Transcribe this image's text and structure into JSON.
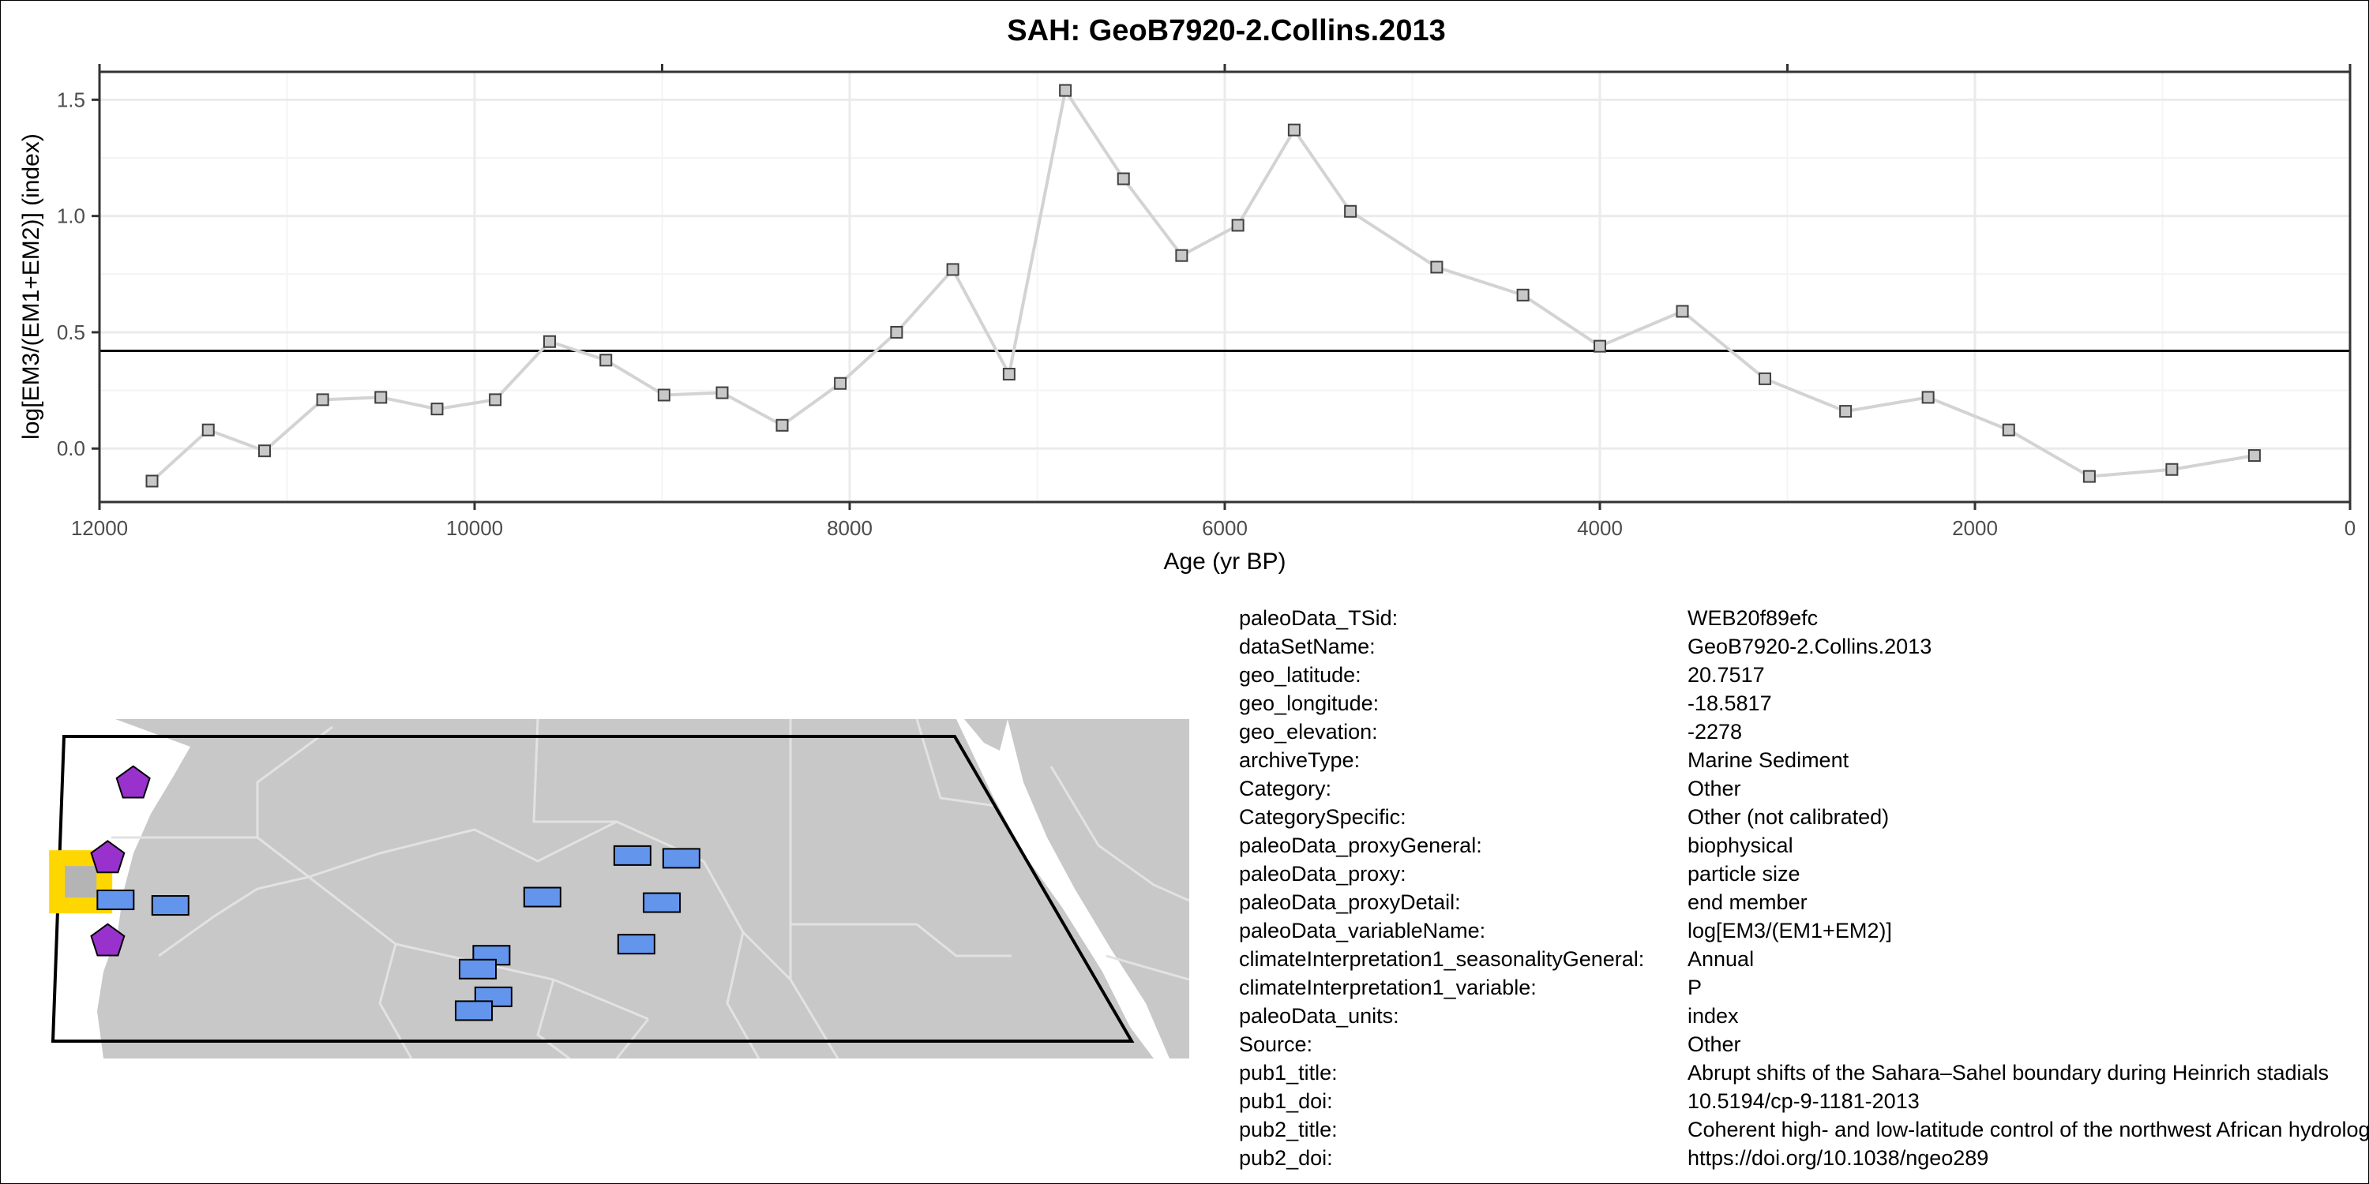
{
  "chart_data": {
    "type": "line",
    "title": "SAH: GeoB7920-2.Collins.2013",
    "xlabel": "Age (yr BP)",
    "ylabel": "log[EM3/(EM1+EM2)] (index)",
    "xlim": [
      12000,
      0
    ],
    "ylim": [
      -0.23,
      1.62
    ],
    "x_reversed": true,
    "x_ticks": [
      12000,
      10000,
      8000,
      6000,
      4000,
      2000,
      0
    ],
    "y_ticks": [
      0.0,
      0.5,
      1.0,
      1.5
    ],
    "x_tick_labels": [
      "12000",
      "10000",
      "8000",
      "6000",
      "4000",
      "2000",
      "0"
    ],
    "y_tick_labels": [
      "0.0",
      "0.5",
      "1.0",
      "1.5"
    ],
    "hline": 0.42,
    "grid": true,
    "series": [
      {
        "marker": "square",
        "x": [
          11720,
          11420,
          11120,
          10810,
          10500,
          10200,
          9890,
          9600,
          9300,
          8990,
          8680,
          8360,
          8050,
          7750,
          7450,
          7150,
          6850,
          6540,
          6230,
          5930,
          5630,
          5330,
          4870,
          4410,
          4000,
          3560,
          3120,
          2690,
          2250,
          1820,
          1390,
          950,
          510
        ],
        "y": [
          -0.14,
          0.08,
          -0.01,
          0.21,
          0.22,
          0.17,
          0.21,
          0.46,
          0.38,
          0.23,
          0.24,
          0.1,
          0.28,
          0.5,
          0.77,
          0.32,
          1.54,
          1.16,
          0.83,
          0.96,
          1.37,
          1.02,
          0.78,
          0.66,
          0.44,
          0.59,
          0.3,
          0.16,
          0.22,
          0.08,
          -0.12,
          -0.09,
          -0.03
        ]
      }
    ]
  },
  "colors": {
    "line": "#d3d3d3",
    "marker_fill": "#c8c8c8",
    "grid_major": "#ebebeb",
    "grid_minor": "#f4f4f4",
    "hline": "#000000",
    "land": "#c8c8c8",
    "borders": "#e2e2e2",
    "site_rect": "#6495ed",
    "site_pentagon": "#9932cc",
    "highlight": "#ffd700",
    "highlight_inner": "#b4b4b4"
  },
  "map": {
    "land_color": "land-gray",
    "markers": [
      {
        "shape": "pentagon-icon",
        "lon": -15.9,
        "lat": 24.3
      },
      {
        "shape": "pentagon-icon",
        "lon": -17.2,
        "lat": 21.6
      },
      {
        "shape": "pentagon-icon",
        "lon": -17.2,
        "lat": 18.6
      },
      {
        "shape": "rectangle-icon",
        "lon": -16.8,
        "lat": 20.1
      },
      {
        "shape": "rectangle-icon",
        "lon": -14.0,
        "lat": 19.9
      },
      {
        "shape": "rectangle-icon",
        "lon": 5.0,
        "lat": 20.2
      },
      {
        "shape": "rectangle-icon",
        "lon": 9.6,
        "lat": 21.7
      },
      {
        "shape": "rectangle-icon",
        "lon": 12.1,
        "lat": 21.6
      },
      {
        "shape": "rectangle-icon",
        "lon": 11.1,
        "lat": 20.0
      },
      {
        "shape": "rectangle-icon",
        "lon": 9.8,
        "lat": 18.5
      },
      {
        "shape": "rectangle-icon",
        "lon": 2.4,
        "lat": 18.1
      },
      {
        "shape": "rectangle-icon",
        "lon": 1.7,
        "lat": 17.6
      },
      {
        "shape": "rectangle-icon",
        "lon": 2.5,
        "lat": 16.6
      },
      {
        "shape": "rectangle-icon",
        "lon": 1.5,
        "lat": 16.1
      }
    ],
    "highlight_site": {
      "lon": -18.5817,
      "lat": 20.7517
    }
  },
  "metadata": [
    {
      "key": "paleoData_TSid:",
      "value": "WEB20f89efc"
    },
    {
      "key": "dataSetName:",
      "value": "GeoB7920-2.Collins.2013"
    },
    {
      "key": "geo_latitude:",
      "value": "20.7517"
    },
    {
      "key": "geo_longitude:",
      "value": "-18.5817"
    },
    {
      "key": "geo_elevation:",
      "value": "-2278"
    },
    {
      "key": "archiveType:",
      "value": "Marine Sediment"
    },
    {
      "key": "Category:",
      "value": "Other"
    },
    {
      "key": "CategorySpecific:",
      "value": "Other (not calibrated)"
    },
    {
      "key": "paleoData_proxyGeneral:",
      "value": "biophysical"
    },
    {
      "key": "paleoData_proxy:",
      "value": "particle size"
    },
    {
      "key": "paleoData_proxyDetail:",
      "value": "end member"
    },
    {
      "key": "paleoData_variableName:",
      "value": "log[EM3/(EM1+EM2)]"
    },
    {
      "key": "climateInterpretation1_seasonalityGeneral:",
      "value": "Annual"
    },
    {
      "key": "climateInterpretation1_variable:",
      "value": "P"
    },
    {
      "key": "paleoData_units:",
      "value": "index"
    },
    {
      "key": "Source:",
      "value": "Other"
    },
    {
      "key": "pub1_title:",
      "value": "Abrupt shifts of the Sahara–Sahel boundary during Heinrich stadials"
    },
    {
      "key": "pub1_doi:",
      "value": "10.5194/cp-9-1181-2013"
    },
    {
      "key": "pub2_title:",
      "value": "Coherent high- and low-latitude control of the northwest African hydrological balance"
    },
    {
      "key": "pub2_doi:",
      "value": "https://doi.org/10.1038/ngeo289"
    }
  ]
}
